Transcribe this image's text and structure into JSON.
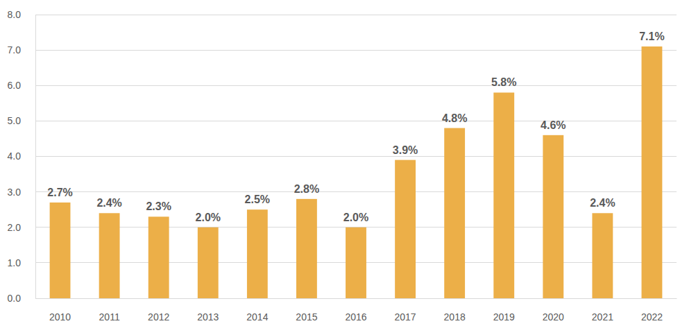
{
  "chart_data": {
    "type": "bar",
    "categories": [
      "2010",
      "2011",
      "2012",
      "2013",
      "2014",
      "2015",
      "2016",
      "2017",
      "2018",
      "2019",
      "2020",
      "2021",
      "2022"
    ],
    "values": [
      2.7,
      2.4,
      2.3,
      2.0,
      2.5,
      2.8,
      2.0,
      3.9,
      4.8,
      5.8,
      4.6,
      2.4,
      7.1
    ],
    "value_labels": [
      "2.7%",
      "2.4%",
      "2.3%",
      "2.0%",
      "2.5%",
      "2.8%",
      "2.0%",
      "3.9%",
      "4.8%",
      "5.8%",
      "4.6%",
      "2.4%",
      "7.1%"
    ],
    "data_labels": true,
    "color": "#ecaf48",
    "ylim": [
      0,
      8
    ],
    "yticks": [
      {
        "value": 0,
        "label": "0.0"
      },
      {
        "value": 1,
        "label": "1.0"
      },
      {
        "value": 2,
        "label": "2.0"
      },
      {
        "value": 3,
        "label": "3.0"
      },
      {
        "value": 4,
        "label": "4.0"
      },
      {
        "value": 5,
        "label": "5.0"
      },
      {
        "value": 6,
        "label": "6.0"
      },
      {
        "value": 7,
        "label": "7.0"
      },
      {
        "value": 8,
        "label": "8.0"
      }
    ],
    "grid": true
  }
}
